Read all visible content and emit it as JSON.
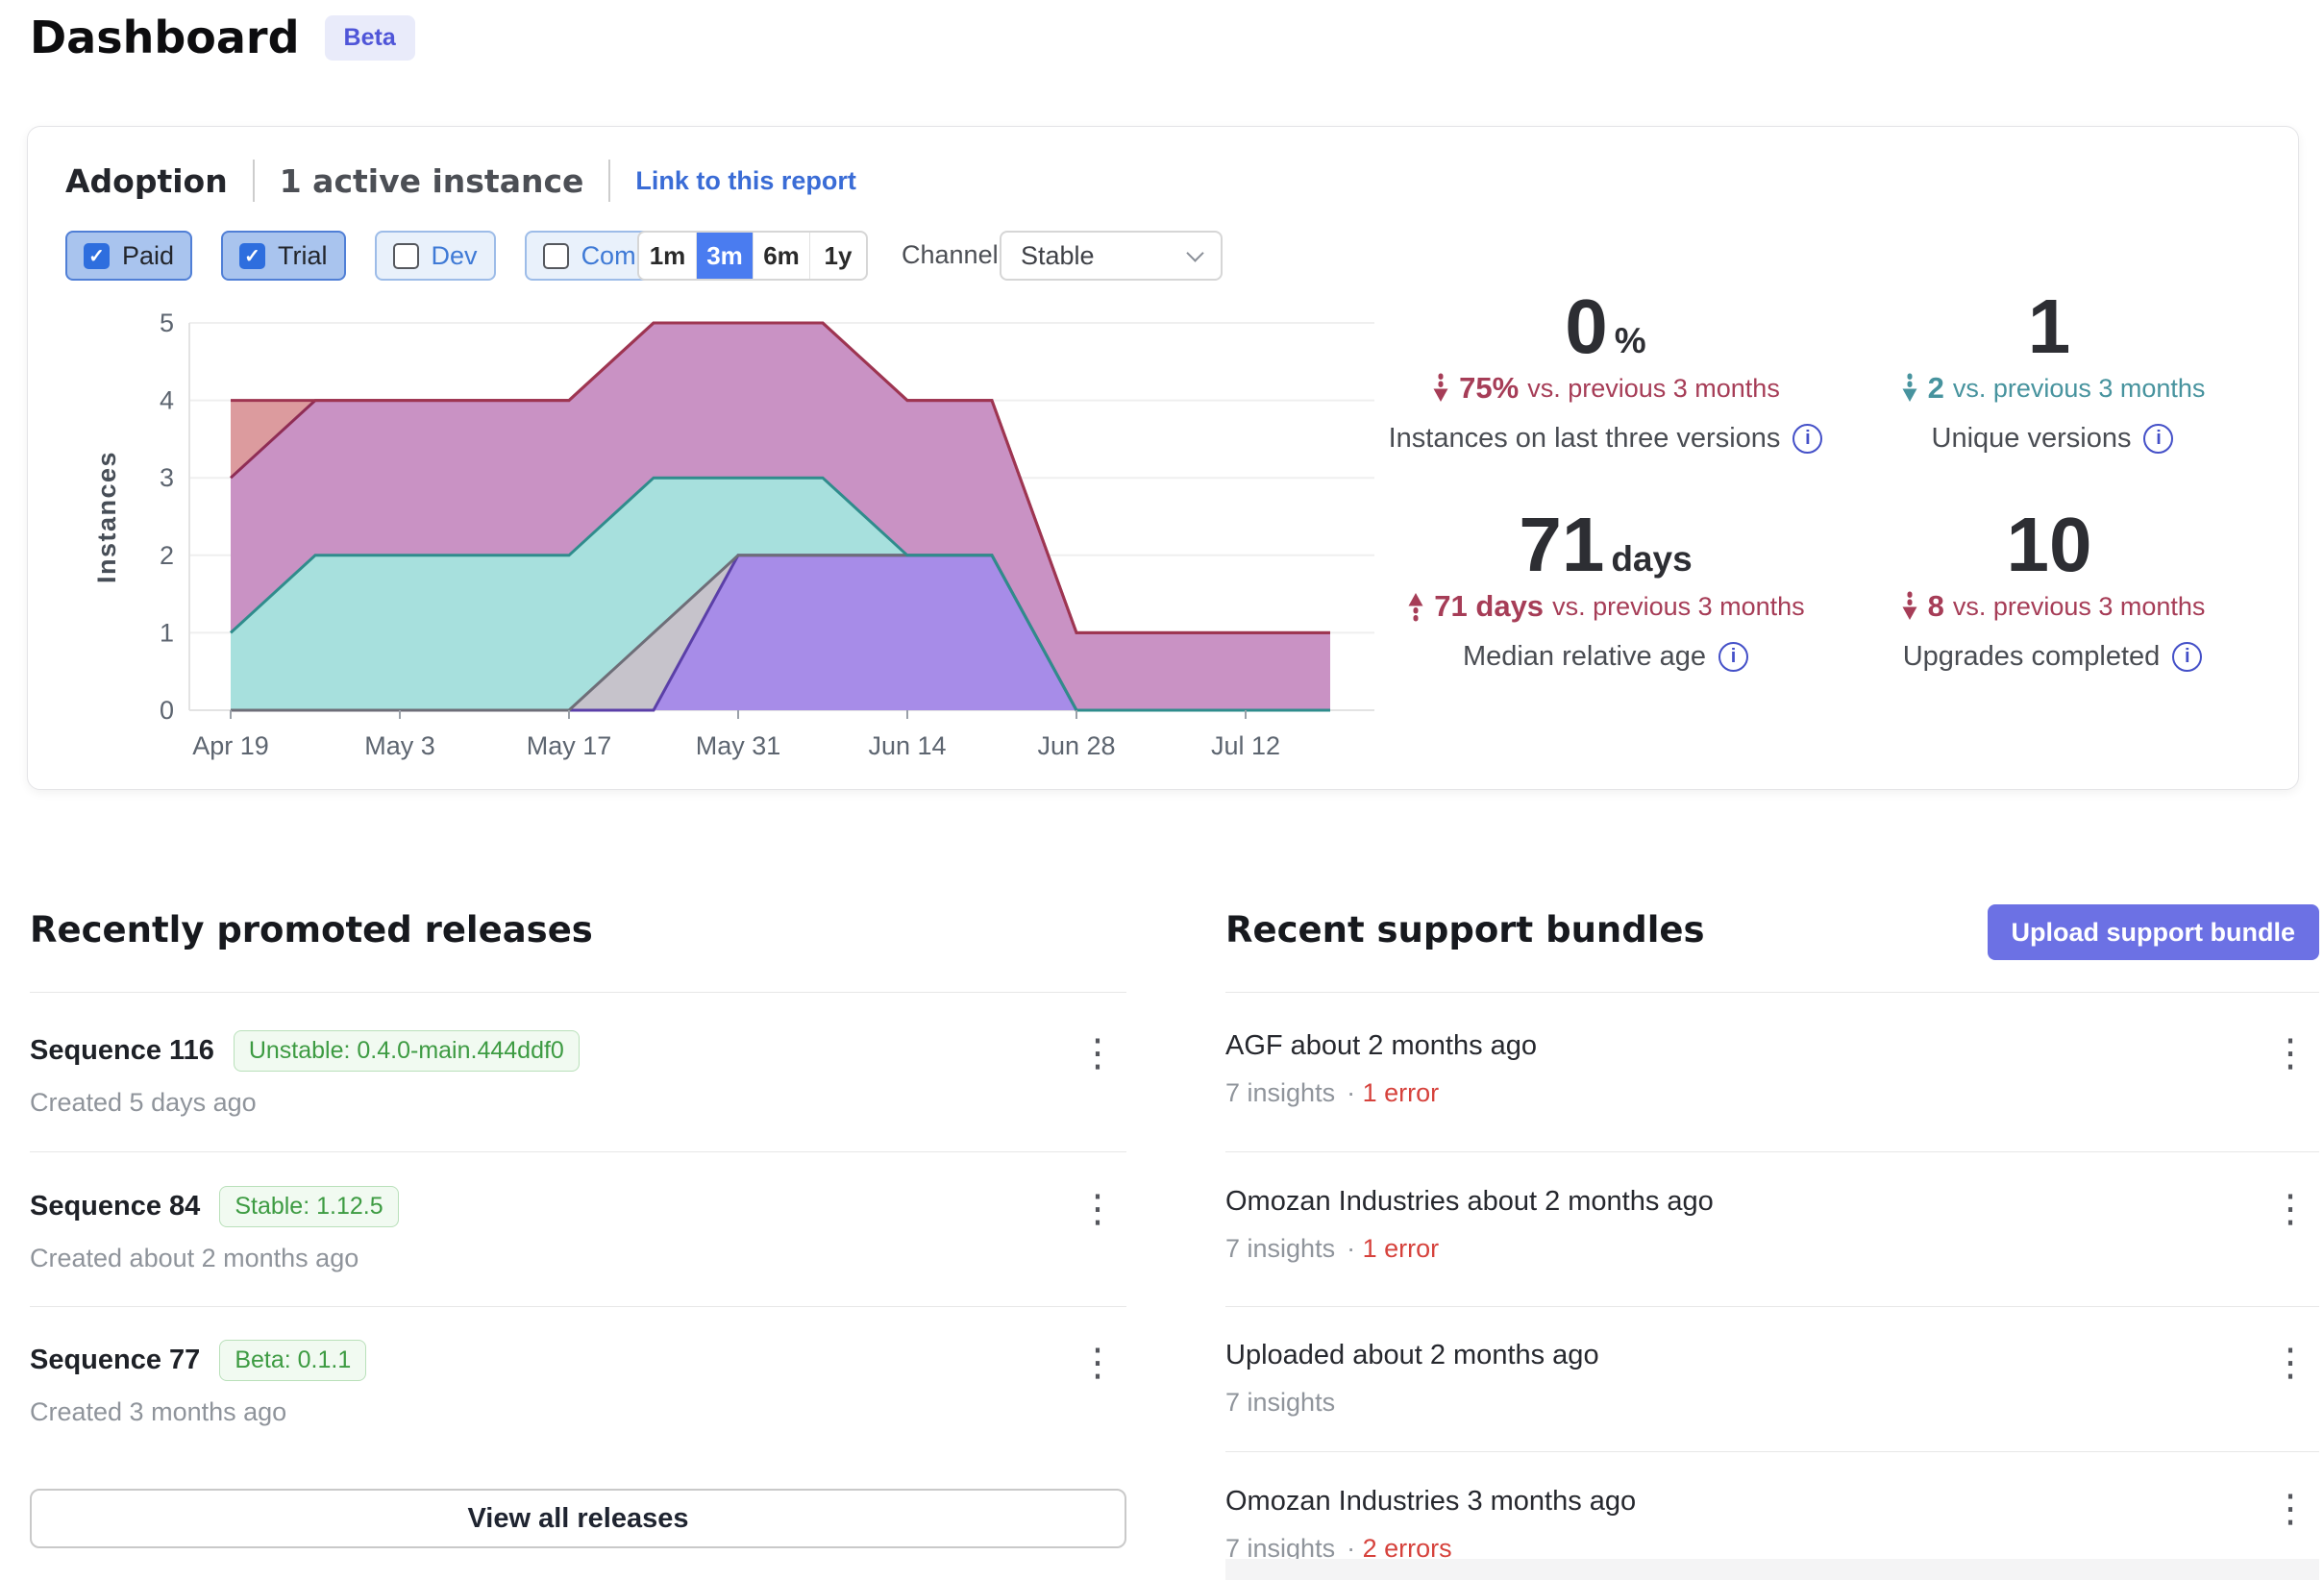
{
  "page": {
    "title": "Dashboard",
    "beta_badge": "Beta"
  },
  "adoption": {
    "title": "Adoption",
    "active_instances": "1 active instance",
    "report_link": "Link to this report",
    "filters": [
      {
        "label": "Paid",
        "checked": true
      },
      {
        "label": "Trial",
        "checked": true
      },
      {
        "label": "Dev",
        "checked": false
      },
      {
        "label": "Community",
        "checked": false
      }
    ],
    "ranges": [
      {
        "label": "1m",
        "selected": false
      },
      {
        "label": "3m",
        "selected": true
      },
      {
        "label": "6m",
        "selected": false
      },
      {
        "label": "1y",
        "selected": false
      }
    ],
    "channel_label": "Channel",
    "channel_value": "Stable",
    "stats": [
      {
        "number": "0",
        "unit": "%",
        "direction": "down",
        "tone": "bad",
        "change": "75%",
        "change_suffix": "vs. previous 3 months",
        "label": "Instances on last three versions"
      },
      {
        "number": "1",
        "unit": "",
        "direction": "down",
        "tone": "good",
        "change": "2",
        "change_suffix": "vs. previous 3 months",
        "label": "Unique versions"
      },
      {
        "number": "71",
        "unit": "days",
        "direction": "up",
        "tone": "bad",
        "change": "71 days",
        "change_suffix": "vs. previous 3 months",
        "label": "Median relative age"
      },
      {
        "number": "10",
        "unit": "",
        "direction": "down",
        "tone": "bad",
        "change": "8",
        "change_suffix": "vs. previous 3 months",
        "label": "Upgrades completed"
      }
    ]
  },
  "chart_data": {
    "type": "area",
    "stacked": true,
    "title": "",
    "ylabel": "Instances",
    "ylim": [
      0,
      5
    ],
    "yticks": [
      0,
      1,
      2,
      3,
      4,
      5
    ],
    "grid": "horizontal",
    "legend": "none",
    "x": [
      "Apr 19",
      "Apr 26",
      "May 3",
      "May 10",
      "May 17",
      "May 24",
      "May 31",
      "Jun 7",
      "Jun 14",
      "Jun 21",
      "Jun 28",
      "Jul 5",
      "Jul 12",
      "Jul 19"
    ],
    "x_tick_every": 2,
    "x_tick_labels": [
      "Apr 19",
      "May 3",
      "May 17",
      "May 31",
      "Jun 14",
      "Jun 28",
      "Jul 12"
    ],
    "series": [
      {
        "name": "violet",
        "fill": "#a78ce8",
        "stroke": "#5b3fa8",
        "values": [
          0,
          0,
          0,
          0,
          0,
          0,
          2,
          2,
          2,
          2,
          0,
          0,
          0,
          0
        ]
      },
      {
        "name": "gray",
        "fill": "#c6c3cb",
        "stroke": "#6e6e78",
        "values": [
          0,
          0,
          0,
          0,
          0,
          1,
          0,
          0,
          0,
          0,
          0,
          0,
          0,
          0
        ]
      },
      {
        "name": "teal",
        "fill": "#a7e0dd",
        "stroke": "#2f8c8c",
        "values": [
          1,
          2,
          2,
          2,
          2,
          2,
          1,
          1,
          0,
          0,
          0,
          0,
          0,
          0
        ]
      },
      {
        "name": "magenta",
        "fill": "#c992c4",
        "stroke": "#8f2d55",
        "values": [
          2,
          2,
          2,
          2,
          2,
          2,
          2,
          2,
          2,
          2,
          1,
          1,
          1,
          1
        ]
      },
      {
        "name": "salmon",
        "fill": "#dc9b9e",
        "stroke": "#9e3551",
        "values": [
          1,
          0,
          0,
          0,
          0,
          0,
          0,
          0,
          0,
          0,
          0,
          0,
          0,
          0
        ]
      }
    ]
  },
  "releases": {
    "heading": "Recently promoted releases",
    "view_all": "View all releases",
    "items": [
      {
        "title": "Sequence 116",
        "badge": "Unstable: 0.4.0-main.444ddf0",
        "created": "Created 5 days ago"
      },
      {
        "title": "Sequence 84",
        "badge": "Stable: 1.12.5",
        "created": "Created about 2 months ago"
      },
      {
        "title": "Sequence 77",
        "badge": "Beta: 0.1.1",
        "created": "Created 3 months ago"
      }
    ]
  },
  "support_bundles": {
    "heading": "Recent support bundles",
    "upload_label": "Upload support bundle",
    "items": [
      {
        "title": "AGF about 2 months ago",
        "insights": "7 insights",
        "separator": "·",
        "error": "1 error"
      },
      {
        "title": "Omozan Industries about 2 months ago",
        "insights": "7 insights",
        "separator": "·",
        "error": "1 error"
      },
      {
        "title": "Uploaded about 2 months ago",
        "insights": "7 insights",
        "separator": "",
        "error": ""
      },
      {
        "title": "Omozan Industries 3 months ago",
        "insights": "7 insights",
        "separator": "·",
        "error": "2 errors"
      }
    ]
  },
  "icons": {
    "info": "i-in-circle",
    "kebab": "⋮",
    "check": "✓",
    "chevron_down": "∨",
    "arrow_up": "↑ dashed-stem",
    "arrow_down": "↓ dashed-stem"
  },
  "colors": {
    "accent_blue": "#4a7cf0",
    "link_blue": "#3a6cd6",
    "indigo_button": "#6c71e4",
    "beta_badge_bg": "#e9ebfa",
    "beta_badge_text": "#4f55d8",
    "badge_green": "#3d9b42",
    "error_red": "#d6423c",
    "trend_bad": "#a63d57",
    "trend_good": "#47939e",
    "info_icon": "#4450c8"
  }
}
